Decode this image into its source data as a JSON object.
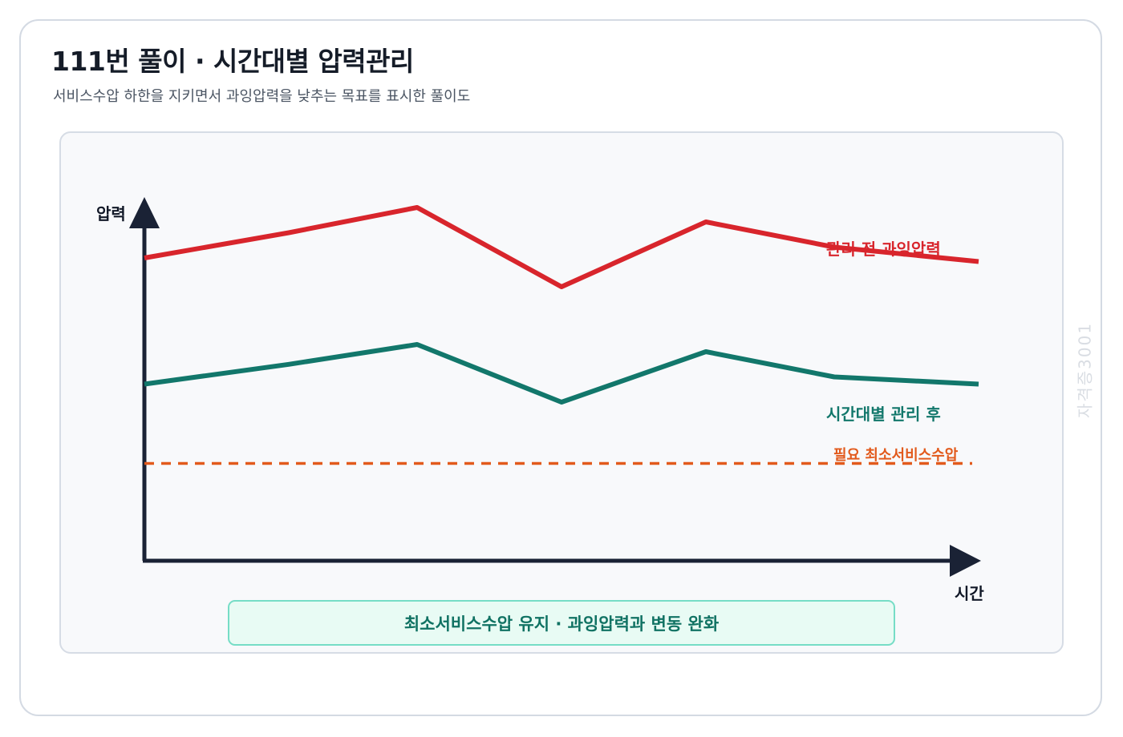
{
  "title": "111번 풀이 · 시간대별 압력관리",
  "subtitle": "서비스수압 하한을 지키면서 과잉압력을 낮추는 목표를 표시한 풀이도",
  "axes": {
    "y_label": "압력",
    "x_label": "시간"
  },
  "lines": {
    "before": {
      "label": "관리 전 과잉압력",
      "color": "#d8252c",
      "levels": [
        0.84,
        0.98,
        0.76,
        0.94,
        0.87,
        0.83
      ]
    },
    "after": {
      "label": "시간대별 관리 후",
      "color": "#12776b",
      "levels": [
        0.49,
        0.6,
        0.44,
        0.58,
        0.51,
        0.49
      ]
    },
    "minimum": {
      "label": "필요 최소서비스수압",
      "color": "#e25a1c",
      "level": 0.27
    }
  },
  "banner": "최소서비스수압 유지 · 과잉압력과 변동 완화",
  "watermark": "자격증3001"
}
